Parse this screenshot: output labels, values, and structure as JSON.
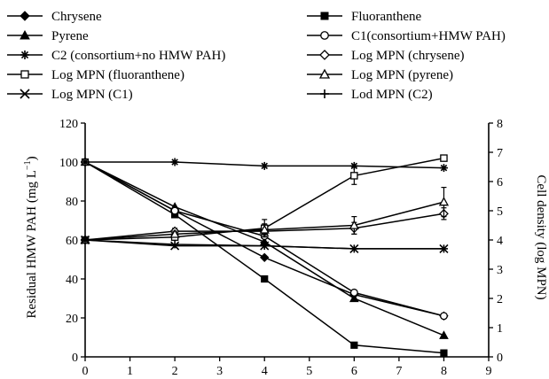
{
  "chart_data": {
    "type": "line",
    "x_axis": {
      "range": [
        0,
        9
      ],
      "ticks": [
        0,
        1,
        2,
        3,
        4,
        5,
        6,
        7,
        8,
        9
      ]
    },
    "y_left": {
      "label": "Residual HMW PAH (mg L",
      "label_sup": "−1",
      "label_close": ")",
      "range": [
        0,
        120
      ],
      "ticks": [
        0,
        20,
        40,
        60,
        80,
        100,
        120
      ]
    },
    "y_right": {
      "label": "Cell density (log MPN)",
      "range": [
        0,
        8
      ],
      "ticks": [
        0,
        1,
        2,
        3,
        4,
        5,
        6,
        7,
        8
      ]
    },
    "legend_placement": "top",
    "series": [
      {
        "name": "Chrysene",
        "marker": "diamond",
        "axis": "left",
        "x": [
          0,
          2,
          4,
          6,
          8
        ],
        "y": [
          100,
          75,
          51,
          32,
          21
        ]
      },
      {
        "name": "Fluoranthene",
        "marker": "square",
        "axis": "left",
        "x": [
          0,
          2,
          4,
          6,
          8
        ],
        "y": [
          100,
          73,
          40,
          6,
          2
        ]
      },
      {
        "name": "Pyrene",
        "marker": "triangle",
        "axis": "left",
        "x": [
          0,
          2,
          4,
          6,
          8
        ],
        "y": [
          100,
          77,
          59,
          30,
          11
        ]
      },
      {
        "name": "C1(consortium+HMW PAH)",
        "marker": "circle-open",
        "axis": "left",
        "x": [
          0,
          2,
          4,
          6,
          8
        ],
        "y": [
          100,
          75,
          62,
          33,
          21
        ]
      },
      {
        "name": "C2 (consortium+no HMW PAH)",
        "marker": "asterisk",
        "axis": "left",
        "x": [
          0,
          2,
          4,
          6,
          8
        ],
        "y": [
          100,
          100,
          98,
          98,
          97
        ]
      },
      {
        "name": "Log MPN (chrysene)",
        "marker": "diamond-open",
        "axis": "right",
        "x": [
          0,
          2,
          4,
          6,
          8
        ],
        "y": [
          4.0,
          4.3,
          4.3,
          4.4,
          4.9
        ],
        "err": [
          0.05,
          0.1,
          0.1,
          0.2,
          0.2
        ]
      },
      {
        "name": "Log MPN (fluoranthene)",
        "marker": "square-open",
        "axis": "right",
        "x": [
          0,
          2,
          4,
          6,
          8
        ],
        "y": [
          4.0,
          4.1,
          4.4,
          6.2,
          6.8
        ],
        "err": [
          0.05,
          0.1,
          0.3,
          0.3,
          0.1
        ]
      },
      {
        "name": "Log MPN (pyrene)",
        "marker": "triangle-open",
        "axis": "right",
        "x": [
          0,
          2,
          4,
          6,
          8
        ],
        "y": [
          4.0,
          4.2,
          4.35,
          4.5,
          5.3
        ],
        "err": [
          0.05,
          0.1,
          0.2,
          0.3,
          0.5
        ]
      },
      {
        "name": "Log MPN (C1)",
        "marker": "x",
        "axis": "right",
        "x": [
          0,
          2,
          4,
          6,
          8
        ],
        "y": [
          4.0,
          3.8,
          3.8,
          3.7,
          3.7
        ],
        "err": [
          0,
          0,
          0,
          0,
          0
        ]
      },
      {
        "name": "Lod MPN (C2)",
        "marker": "plus",
        "axis": "right",
        "x": [
          0,
          2,
          4,
          6,
          8
        ],
        "y": [
          4.0,
          3.85,
          3.8,
          3.7,
          3.7
        ],
        "err": [
          0,
          0,
          0,
          0,
          0
        ]
      }
    ]
  }
}
